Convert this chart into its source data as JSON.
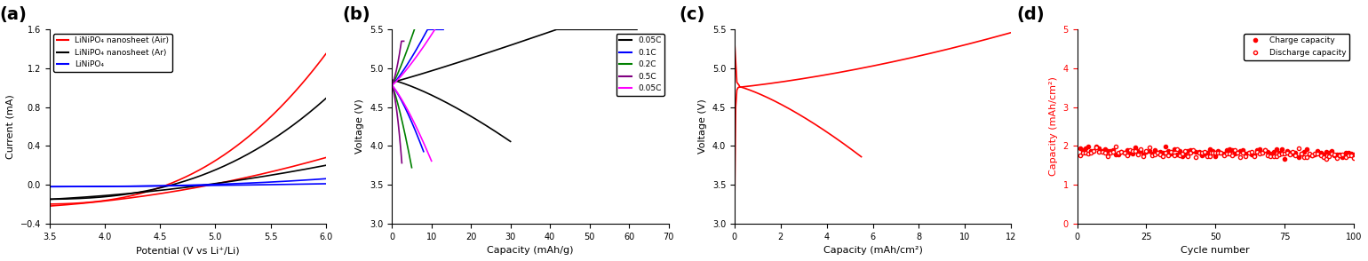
{
  "fig_size": [
    15.4,
    2.94
  ],
  "dpi": 100,
  "panel_labels": [
    "(a)",
    "(b)",
    "(c)",
    "(d)"
  ],
  "panel_label_fontsize": 14,
  "panel_label_fontweight": "bold",
  "panel_a": {
    "xlabel": "Potential (V vs Li⁺/Li)",
    "ylabel": "Current (mA)",
    "xlim": [
      3.5,
      6.0
    ],
    "ylim": [
      -0.4,
      1.6
    ],
    "xticks": [
      3.5,
      4.0,
      4.5,
      5.0,
      5.5,
      6.0
    ],
    "yticks": [
      -0.4,
      0.0,
      0.4,
      0.8,
      1.2,
      1.6
    ],
    "legend_labels": [
      "LiNiPO₄ nanosheet (Air)",
      "LiNiPO₄ nanosheet (Ar)",
      "LiNiPO₄"
    ],
    "legend_colors": [
      "red",
      "black",
      "blue"
    ]
  },
  "panel_b": {
    "xlabel": "Capacity (mAh/g)",
    "ylabel": "Voltage (V)",
    "xlim": [
      0,
      70
    ],
    "ylim": [
      3.0,
      5.5
    ],
    "xticks": [
      0,
      10,
      20,
      30,
      40,
      50,
      60,
      70
    ],
    "yticks": [
      3.0,
      3.5,
      4.0,
      4.5,
      5.0,
      5.5
    ],
    "legend_labels": [
      "0.05C",
      "0.1C",
      "0.2C",
      "0.5C",
      "0.05C"
    ],
    "legend_colors": [
      "black",
      "blue",
      "green",
      "purple",
      "magenta"
    ]
  },
  "panel_c": {
    "xlabel": "Capacity (mAh/cm²)",
    "ylabel": "Voltage (V)",
    "xlim": [
      0,
      12
    ],
    "ylim": [
      3.0,
      5.5
    ],
    "xticks": [
      0,
      2,
      4,
      6,
      8,
      10,
      12
    ],
    "yticks": [
      3.0,
      3.5,
      4.0,
      4.5,
      5.0,
      5.5
    ],
    "color": "red"
  },
  "panel_d": {
    "xlabel": "Cycle number",
    "ylabel": "Capacity (mAh/cm²)",
    "xlim": [
      0,
      100
    ],
    "ylim": [
      0,
      5
    ],
    "xticks": [
      0,
      25,
      50,
      75,
      100
    ],
    "yticks": [
      0,
      1,
      2,
      3,
      4,
      5
    ],
    "legend_labels": [
      "Charge capacity",
      "Discharge capacity"
    ],
    "charge_color": "red",
    "discharge_color": "red"
  }
}
